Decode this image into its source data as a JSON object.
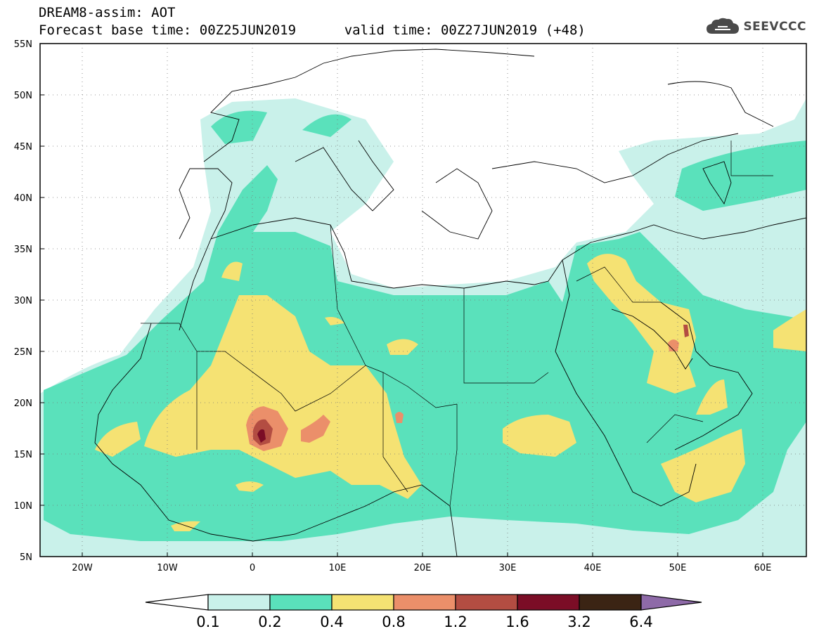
{
  "title": {
    "line1": "DREAM8-assim: AOT",
    "base_label": "Forecast base time: 00Z25JUN2019",
    "valid_label": "valid time: 00Z27JUN2019 (+48)"
  },
  "logo": {
    "text": "SEEVCCC",
    "icon": "cloud-icon"
  },
  "axes": {
    "lat_labels": [
      "55N",
      "50N",
      "45N",
      "40N",
      "35N",
      "30N",
      "25N",
      "20N",
      "15N",
      "10N",
      "5N"
    ],
    "lon_labels": [
      "20W",
      "10W",
      "0",
      "10E",
      "20E",
      "30E",
      "40E",
      "50E",
      "60E"
    ]
  },
  "colorbar": {
    "levels": [
      "0.1",
      "0.2",
      "0.4",
      "0.8",
      "1.2",
      "1.6",
      "3.2",
      "6.4"
    ],
    "colors": [
      "#ffffff",
      "#c9f1ea",
      "#5ae1bb",
      "#f5e273",
      "#eb8f6a",
      "#b34d42",
      "#7b0d26",
      "#3b2414",
      "#8e6aa8"
    ]
  },
  "palette": {
    "c01": "#c9f1ea",
    "c02": "#5ae1bb",
    "c04": "#f5e273",
    "c08": "#eb8f6a",
    "c12": "#b34d42",
    "c16": "#7b0d26"
  }
}
